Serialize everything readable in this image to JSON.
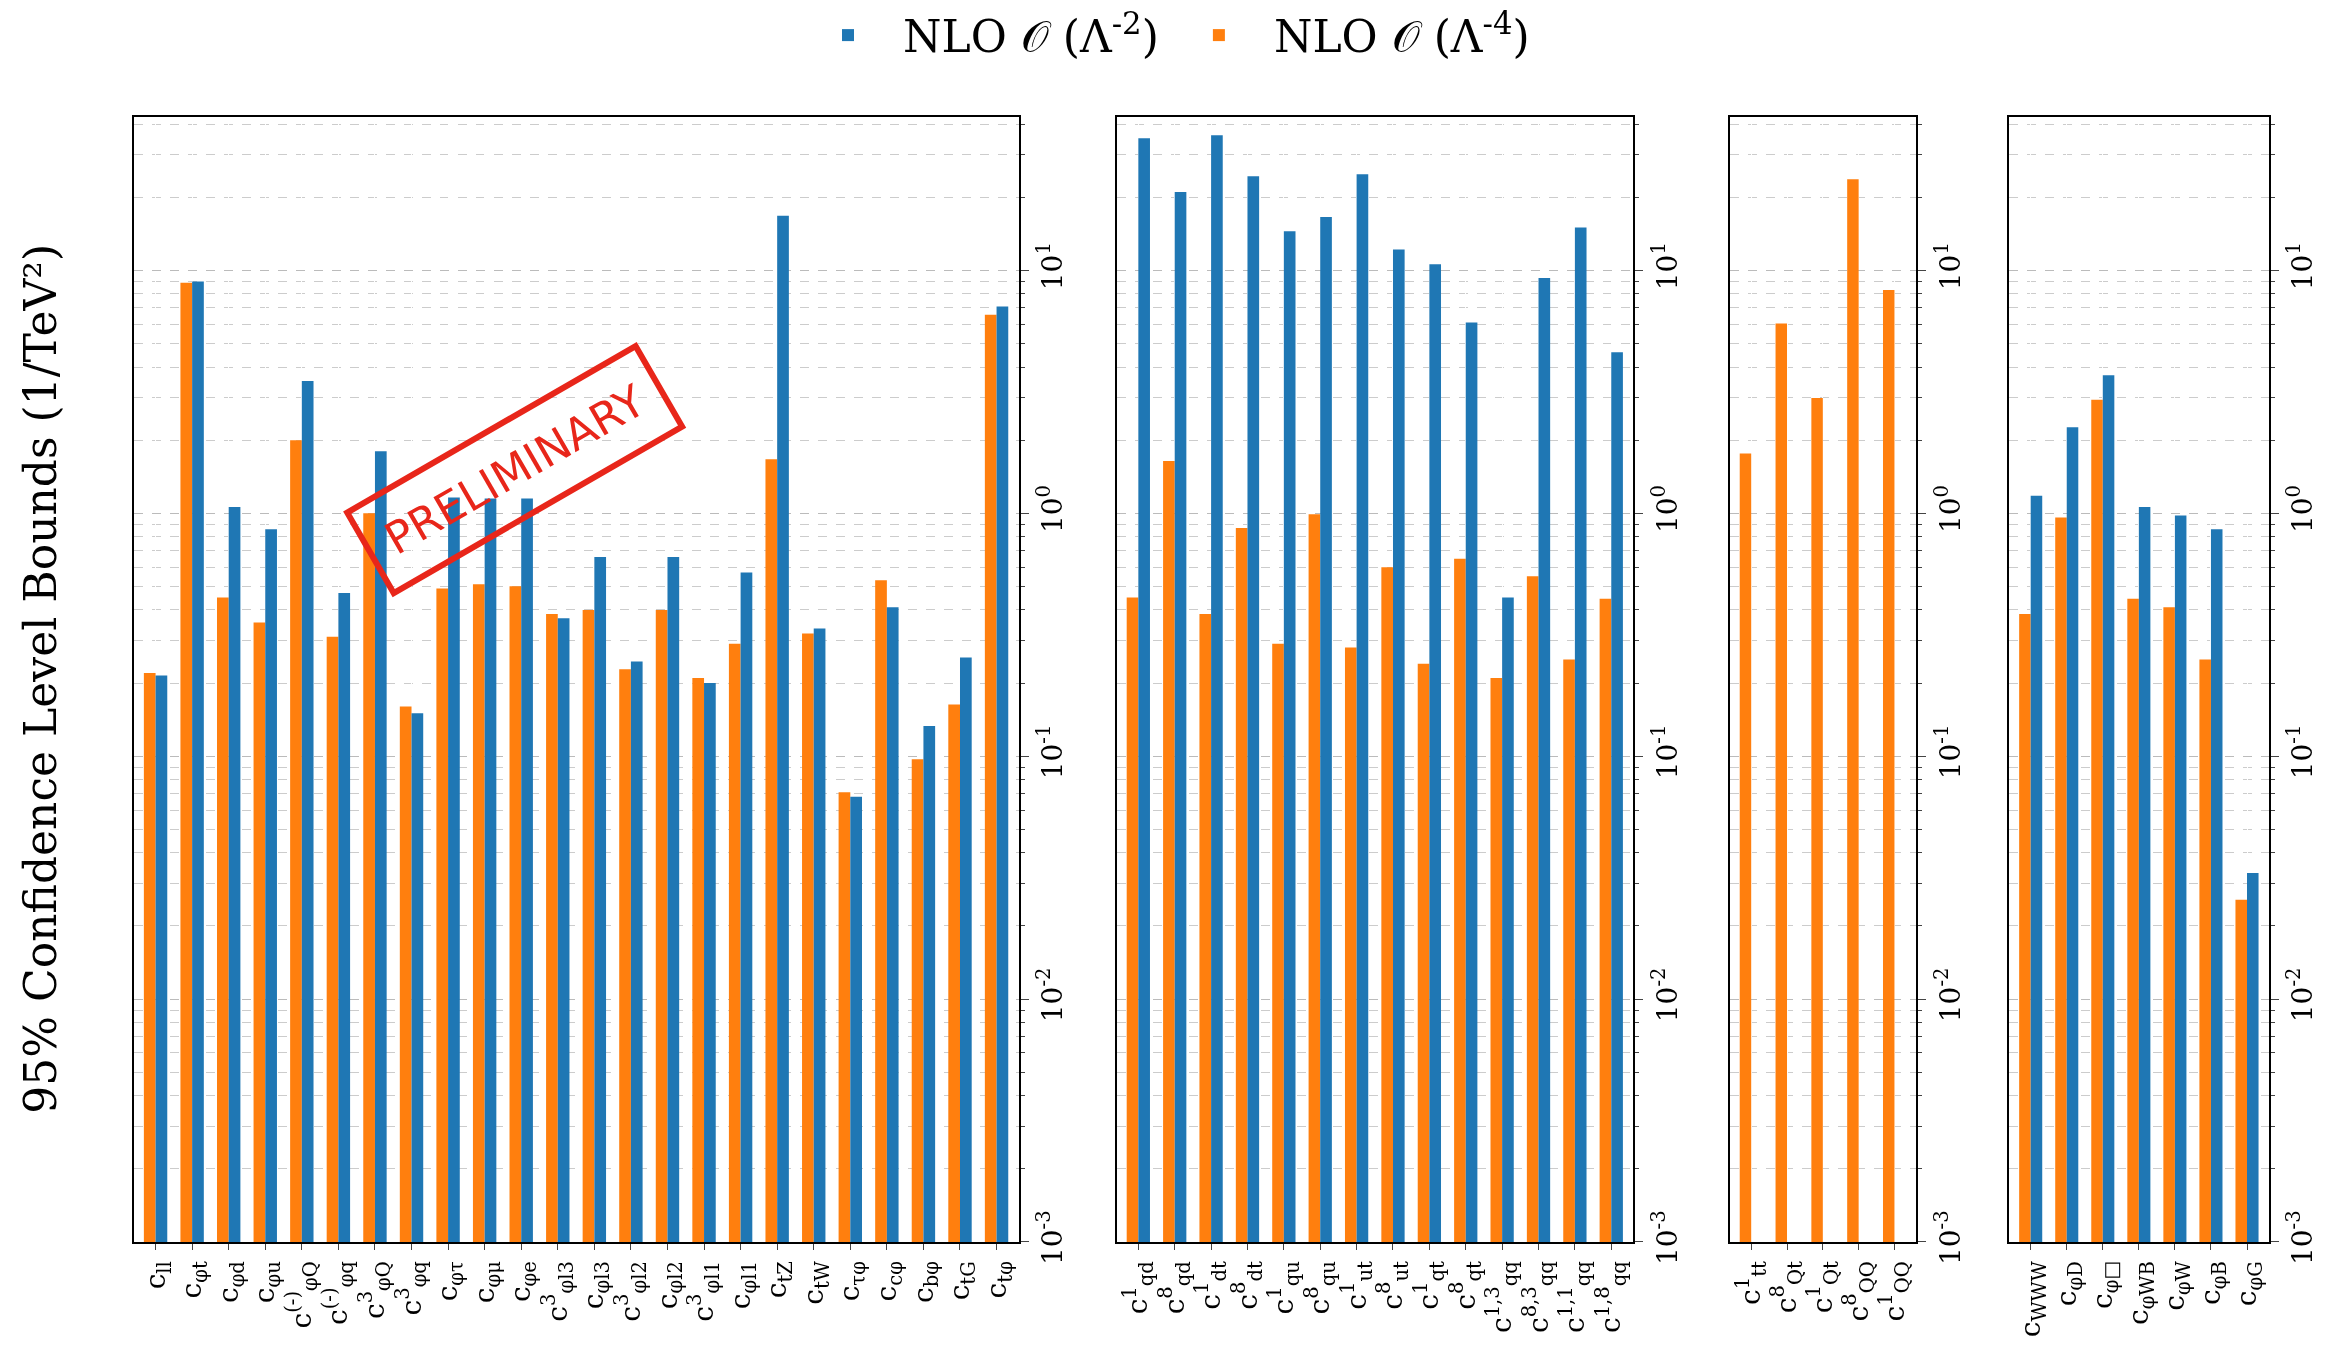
{
  "chart_data": [
    {
      "type": "bar",
      "ylabel": "95% Confidence Level Bounds (1/TeV²)",
      "log": "y",
      "grid": true,
      "legend": "top",
      "ylim": [
        0.001,
        43
      ],
      "yticks": [
        {
          "value": 0.001,
          "label": "10$^{-3}$"
        },
        {
          "value": 0.01,
          "label": "10$^{-2}$"
        },
        {
          "value": 0.1,
          "label": "10$^{-1}$"
        },
        {
          "value": 1,
          "label": "10$^{0}$"
        },
        {
          "value": 10,
          "label": "10$^{1}$"
        }
      ],
      "annotations": [
        "PRELIMINARY"
      ],
      "categories": [
        "c$_{ll}$",
        "c$_{φt}$",
        "c$_{φd}$",
        "c$_{φu}$",
        "c$^{(-)}$$_{φQ}$",
        "c$^{(-)}$$_{φq}$",
        "c$^{3}$$_{φQ}$",
        "c$^{3}$$_{φq}$",
        "c$_{φτ}$",
        "c$_{φμ}$",
        "c$_{φe}$",
        "c$^{3}$$_{φl3}$",
        "c$_{φl3}$",
        "c$^{3}$$_{φl2}$",
        "c$_{φl2}$",
        "c$^{3}$$_{φl1}$",
        "c$_{φl1}$",
        "c$_{tZ}$",
        "c$_{tW}$",
        "c$_{τφ}$",
        "c$_{cφ}$",
        "c$_{bφ}$",
        "c$_{tG}$",
        "c$_{tφ}$"
      ],
      "series": [
        {
          "name": "NLO 𝒪 (Λ$^{-2}$)",
          "color": "#1f77b4",
          "values": [
            0.215,
            9.0,
            1.06,
            0.86,
            3.5,
            0.47,
            1.8,
            0.15,
            1.16,
            1.15,
            1.15,
            0.37,
            0.66,
            0.245,
            0.66,
            0.2,
            0.57,
            16.8,
            0.335,
            0.068,
            0.41,
            0.133,
            0.255,
            7.1
          ]
        },
        {
          "name": "NLO 𝒪 (Λ$^{-4}$)",
          "color": "#ff7f0e",
          "values": [
            0.22,
            8.9,
            0.45,
            0.355,
            2.0,
            0.31,
            1.0,
            0.16,
            0.49,
            0.51,
            0.5,
            0.385,
            0.4,
            0.228,
            0.4,
            0.21,
            0.29,
            1.67,
            0.32,
            0.071,
            0.53,
            0.097,
            0.163,
            6.56
          ]
        }
      ]
    },
    {
      "type": "bar",
      "log": "y",
      "grid": true,
      "ylim": [
        0.001,
        43
      ],
      "yticks": [
        {
          "value": 0.001,
          "label": "10$^{-3}$"
        },
        {
          "value": 0.01,
          "label": "10$^{-2}$"
        },
        {
          "value": 0.1,
          "label": "10$^{-1}$"
        },
        {
          "value": 1,
          "label": "10$^{0}$"
        },
        {
          "value": 10,
          "label": "10$^{1}$"
        }
      ],
      "categories": [
        "c$^{1}$$_{qd}$",
        "c$^{8}$$_{qd}$",
        "c$^{1}$$_{dt}$",
        "c$^{8}$$_{dt}$",
        "c$^{1}$$_{qu}$",
        "c$^{8}$$_{qu}$",
        "c$^{1}$$_{ut}$",
        "c$^{8}$$_{ut}$",
        "c$^{1}$$_{qt}$",
        "c$^{8}$$_{qt}$",
        "c$^{1,3}$$_{qq}$",
        "c$^{8,3}$$_{qq}$",
        "c$^{1,1}$$_{qq}$",
        "c$^{1,8}$$_{qq}$"
      ],
      "series": [
        {
          "color": "#1f77b4",
          "values": [
            35,
            21,
            36,
            24.4,
            14.5,
            16.6,
            24.9,
            12.2,
            10.6,
            6.1,
            0.45,
            9.3,
            15.0,
            4.6
          ]
        },
        {
          "color": "#ff7f0e",
          "values": [
            0.45,
            1.64,
            0.385,
            0.87,
            0.29,
            0.99,
            0.28,
            0.6,
            0.24,
            0.65,
            0.21,
            0.55,
            0.25,
            0.445
          ]
        }
      ]
    },
    {
      "type": "bar",
      "log": "y",
      "grid": true,
      "ylim": [
        0.001,
        43
      ],
      "yticks": [
        {
          "value": 0.001,
          "label": "10$^{-3}$"
        },
        {
          "value": 0.01,
          "label": "10$^{-2}$"
        },
        {
          "value": 0.1,
          "label": "10$^{-1}$"
        },
        {
          "value": 1,
          "label": "10$^{0}$"
        },
        {
          "value": 10,
          "label": "10$^{1}$"
        }
      ],
      "categories": [
        "c$^{1}$$_{tt}$",
        "c$^{8}$$_{Qt}$",
        "c$^{1}$$_{Qt}$",
        "c$^{8}$$_{QQ}$",
        "c$^{1}$$_{QQ}$"
      ],
      "series": [
        {
          "color": "#1f77b4",
          "values": [
            null,
            null,
            null,
            null,
            null
          ]
        },
        {
          "color": "#ff7f0e",
          "values": [
            1.76,
            6.05,
            2.98,
            23.7,
            8.3
          ]
        }
      ]
    },
    {
      "type": "bar",
      "log": "y",
      "grid": true,
      "ylim": [
        0.001,
        43
      ],
      "yticks": [
        {
          "value": 0.001,
          "label": "10$^{-3}$"
        },
        {
          "value": 0.01,
          "label": "10$^{-2}$"
        },
        {
          "value": 0.1,
          "label": "10$^{-1}$"
        },
        {
          "value": 1,
          "label": "10$^{0}$"
        },
        {
          "value": 10,
          "label": "10$^{1}$"
        }
      ],
      "categories": [
        "c$_{WWW}$",
        "c$_{φD}$",
        "c$_{φ□}$",
        "c$_{φWB}$",
        "c$_{φW}$",
        "c$_{φB}$",
        "c$_{φG}$"
      ],
      "series": [
        {
          "color": "#1f77b4",
          "values": [
            1.18,
            2.26,
            3.7,
            1.06,
            0.98,
            0.86,
            0.033
          ]
        },
        {
          "color": "#ff7f0e",
          "values": [
            0.385,
            0.96,
            2.93,
            0.445,
            0.41,
            0.25,
            0.0256
          ]
        }
      ]
    }
  ]
}
